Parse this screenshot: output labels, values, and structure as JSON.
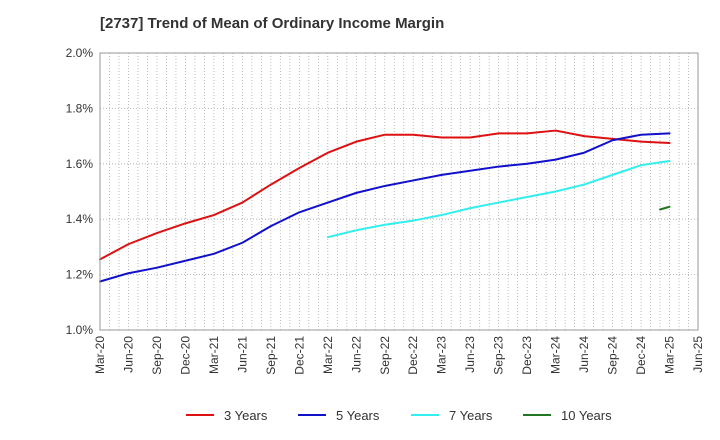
{
  "chart_data": {
    "type": "line",
    "title": "[2737]  Trend of Mean of Ordinary Income Margin",
    "xlabel": "",
    "ylabel": "",
    "x_ticks": [
      "Mar-20",
      "Jun-20",
      "Sep-20",
      "Dec-20",
      "Mar-21",
      "Jun-21",
      "Sep-21",
      "Dec-21",
      "Mar-22",
      "Jun-22",
      "Sep-22",
      "Dec-22",
      "Mar-23",
      "Jun-23",
      "Sep-23",
      "Dec-23",
      "Mar-24",
      "Jun-24",
      "Sep-24",
      "Dec-24",
      "Mar-25",
      "Jun-25"
    ],
    "y_ticks": [
      1.0,
      1.2,
      1.4,
      1.6,
      1.8,
      2.0
    ],
    "y_tick_labels": [
      "1.0%",
      "1.2%",
      "1.4%",
      "1.6%",
      "1.8%",
      "2.0%"
    ],
    "ylim": [
      1.0,
      2.0
    ],
    "grid": true,
    "legend_position": "bottom",
    "series": [
      {
        "name": "3 Years",
        "color": "#dd1111",
        "x": [
          "Mar-20",
          "Jun-20",
          "Sep-20",
          "Dec-20",
          "Mar-21",
          "Jun-21",
          "Sep-21",
          "Dec-21",
          "Mar-22",
          "Jun-22",
          "Sep-22",
          "Dec-22",
          "Mar-23",
          "Jun-23",
          "Sep-23",
          "Dec-23",
          "Mar-24",
          "Jun-24",
          "Sep-24",
          "Dec-24",
          "Mar-25"
        ],
        "values": [
          1.255,
          1.31,
          1.35,
          1.385,
          1.415,
          1.46,
          1.525,
          1.585,
          1.64,
          1.68,
          1.705,
          1.705,
          1.695,
          1.695,
          1.71,
          1.71,
          1.72,
          1.7,
          1.69,
          1.68,
          1.675
        ]
      },
      {
        "name": "5 Years",
        "color": "#1111cc",
        "x": [
          "Mar-20",
          "Jun-20",
          "Sep-20",
          "Dec-20",
          "Mar-21",
          "Jun-21",
          "Sep-21",
          "Dec-21",
          "Mar-22",
          "Jun-22",
          "Sep-22",
          "Dec-22",
          "Mar-23",
          "Jun-23",
          "Sep-23",
          "Dec-23",
          "Mar-24",
          "Jun-24",
          "Sep-24",
          "Dec-24",
          "Mar-25"
        ],
        "values": [
          1.175,
          1.205,
          1.225,
          1.25,
          1.275,
          1.315,
          1.375,
          1.425,
          1.46,
          1.495,
          1.52,
          1.54,
          1.56,
          1.575,
          1.59,
          1.6,
          1.615,
          1.64,
          1.685,
          1.705,
          1.71
        ]
      },
      {
        "name": "7 Years",
        "color": "#33eeee",
        "x": [
          "Mar-22",
          "Jun-22",
          "Sep-22",
          "Dec-22",
          "Mar-23",
          "Jun-23",
          "Sep-23",
          "Dec-23",
          "Mar-24",
          "Jun-24",
          "Sep-24",
          "Dec-24",
          "Mar-25"
        ],
        "values": [
          1.335,
          1.36,
          1.38,
          1.395,
          1.415,
          1.44,
          1.46,
          1.48,
          1.5,
          1.525,
          1.56,
          1.595,
          1.61
        ]
      },
      {
        "name": "10 Years",
        "color": "#227722",
        "x": [
          "Feb-25",
          "Mar-25"
        ],
        "values": [
          1.435,
          1.445
        ]
      }
    ]
  }
}
